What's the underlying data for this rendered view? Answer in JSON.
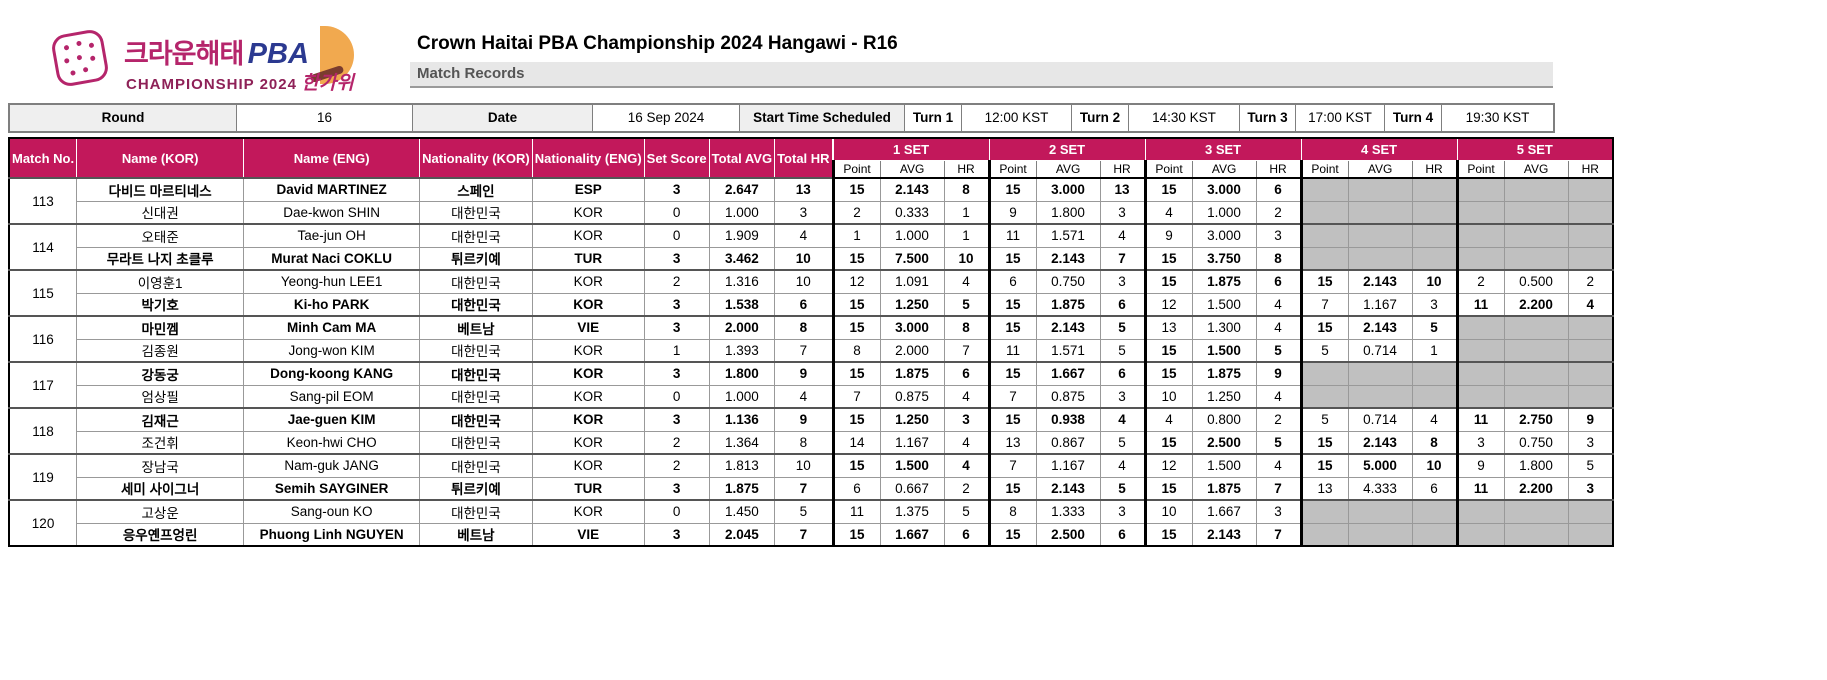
{
  "colors": {
    "header_bg": "#C2185B",
    "empty_cell": "#C0C0C0",
    "brand_magenta": "#B5256B",
    "brand_blue": "#2B3990",
    "moon_orange": "#F1A94F"
  },
  "logo": {
    "brand_kr": "크라운해태",
    "brand_en": "PBA",
    "line2_left": "CHAMPIONSHIP 2024",
    "line2_right": "한가위"
  },
  "header": {
    "title": "Crown Haitai PBA Championship 2024 Hangawi - R16",
    "section": "Match Records"
  },
  "info_bar": {
    "round_label": "Round",
    "round_value": "16",
    "date_label": "Date",
    "date_value": "16 Sep 2024",
    "start_label": "Start Time Scheduled",
    "turns": [
      {
        "label": "Turn 1",
        "time": "12:00 KST"
      },
      {
        "label": "Turn 2",
        "time": "14:30 KST"
      },
      {
        "label": "Turn 3",
        "time": "17:00 KST"
      },
      {
        "label": "Turn 4",
        "time": "19:30 KST"
      }
    ]
  },
  "table": {
    "headers": {
      "match_no": "Match\nNo.",
      "name_kor": "Name\n(KOR)",
      "name_eng": "Name\n(ENG)",
      "nat_kor": "Nationality\n(KOR)",
      "nat_eng": "Nationality\n(ENG)",
      "set_score": "Set\nScore",
      "total_avg": "Total\nAVG",
      "total_hr": "Total\nHR"
    },
    "set_headers": [
      "1 SET",
      "2 SET",
      "3 SET",
      "4 SET",
      "5 SET"
    ],
    "sub_headers": [
      "Point",
      "AVG",
      "HR"
    ],
    "matches": [
      {
        "no": "113",
        "players": [
          {
            "name_kor": "다비드 마르티네스",
            "name_eng": "David MARTINEZ",
            "nat_kor": "스페인",
            "nat_eng": "ESP",
            "set_score": "3",
            "total_avg": "2.647",
            "total_hr": "13",
            "winner": true,
            "sets": [
              {
                "point": "15",
                "avg": "2.143",
                "hr": "8",
                "win": true
              },
              {
                "point": "15",
                "avg": "3.000",
                "hr": "13",
                "win": true
              },
              {
                "point": "15",
                "avg": "3.000",
                "hr": "6",
                "win": true
              },
              null,
              null
            ]
          },
          {
            "name_kor": "신대권",
            "name_eng": "Dae-kwon SHIN",
            "nat_kor": "대한민국",
            "nat_eng": "KOR",
            "set_score": "0",
            "total_avg": "1.000",
            "total_hr": "3",
            "winner": false,
            "sets": [
              {
                "point": "2",
                "avg": "0.333",
                "hr": "1",
                "win": false
              },
              {
                "point": "9",
                "avg": "1.800",
                "hr": "3",
                "win": false
              },
              {
                "point": "4",
                "avg": "1.000",
                "hr": "2",
                "win": false
              },
              null,
              null
            ]
          }
        ]
      },
      {
        "no": "114",
        "players": [
          {
            "name_kor": "오태준",
            "name_eng": "Tae-jun OH",
            "nat_kor": "대한민국",
            "nat_eng": "KOR",
            "set_score": "0",
            "total_avg": "1.909",
            "total_hr": "4",
            "winner": false,
            "sets": [
              {
                "point": "1",
                "avg": "1.000",
                "hr": "1",
                "win": false
              },
              {
                "point": "11",
                "avg": "1.571",
                "hr": "4",
                "win": false
              },
              {
                "point": "9",
                "avg": "3.000",
                "hr": "3",
                "win": false
              },
              null,
              null
            ]
          },
          {
            "name_kor": "무라트 나지 초클루",
            "name_eng": "Murat Naci COKLU",
            "nat_kor": "튀르키예",
            "nat_eng": "TUR",
            "set_score": "3",
            "total_avg": "3.462",
            "total_hr": "10",
            "winner": true,
            "sets": [
              {
                "point": "15",
                "avg": "7.500",
                "hr": "10",
                "win": true
              },
              {
                "point": "15",
                "avg": "2.143",
                "hr": "7",
                "win": true
              },
              {
                "point": "15",
                "avg": "3.750",
                "hr": "8",
                "win": true
              },
              null,
              null
            ]
          }
        ]
      },
      {
        "no": "115",
        "players": [
          {
            "name_kor": "이영훈1",
            "name_eng": "Yeong-hun LEE1",
            "nat_kor": "대한민국",
            "nat_eng": "KOR",
            "set_score": "2",
            "total_avg": "1.316",
            "total_hr": "10",
            "winner": false,
            "sets": [
              {
                "point": "12",
                "avg": "1.091",
                "hr": "4",
                "win": false
              },
              {
                "point": "6",
                "avg": "0.750",
                "hr": "3",
                "win": false
              },
              {
                "point": "15",
                "avg": "1.875",
                "hr": "6",
                "win": true
              },
              {
                "point": "15",
                "avg": "2.143",
                "hr": "10",
                "win": true
              },
              {
                "point": "2",
                "avg": "0.500",
                "hr": "2",
                "win": false
              }
            ]
          },
          {
            "name_kor": "박기호",
            "name_eng": "Ki-ho PARK",
            "nat_kor": "대한민국",
            "nat_eng": "KOR",
            "set_score": "3",
            "total_avg": "1.538",
            "total_hr": "6",
            "winner": true,
            "sets": [
              {
                "point": "15",
                "avg": "1.250",
                "hr": "5",
                "win": true
              },
              {
                "point": "15",
                "avg": "1.875",
                "hr": "6",
                "win": true
              },
              {
                "point": "12",
                "avg": "1.500",
                "hr": "4",
                "win": false
              },
              {
                "point": "7",
                "avg": "1.167",
                "hr": "3",
                "win": false
              },
              {
                "point": "11",
                "avg": "2.200",
                "hr": "4",
                "win": true
              }
            ]
          }
        ]
      },
      {
        "no": "116",
        "players": [
          {
            "name_kor": "마민껨",
            "name_eng": "Minh Cam MA",
            "nat_kor": "베트남",
            "nat_eng": "VIE",
            "set_score": "3",
            "total_avg": "2.000",
            "total_hr": "8",
            "winner": true,
            "sets": [
              {
                "point": "15",
                "avg": "3.000",
                "hr": "8",
                "win": true
              },
              {
                "point": "15",
                "avg": "2.143",
                "hr": "5",
                "win": true
              },
              {
                "point": "13",
                "avg": "1.300",
                "hr": "4",
                "win": false
              },
              {
                "point": "15",
                "avg": "2.143",
                "hr": "5",
                "win": true
              },
              null
            ]
          },
          {
            "name_kor": "김종원",
            "name_eng": "Jong-won KIM",
            "nat_kor": "대한민국",
            "nat_eng": "KOR",
            "set_score": "1",
            "total_avg": "1.393",
            "total_hr": "7",
            "winner": false,
            "sets": [
              {
                "point": "8",
                "avg": "2.000",
                "hr": "7",
                "win": false
              },
              {
                "point": "11",
                "avg": "1.571",
                "hr": "5",
                "win": false
              },
              {
                "point": "15",
                "avg": "1.500",
                "hr": "5",
                "win": true
              },
              {
                "point": "5",
                "avg": "0.714",
                "hr": "1",
                "win": false
              },
              null
            ]
          }
        ]
      },
      {
        "no": "117",
        "players": [
          {
            "name_kor": "강동궁",
            "name_eng": "Dong-koong KANG",
            "nat_kor": "대한민국",
            "nat_eng": "KOR",
            "set_score": "3",
            "total_avg": "1.800",
            "total_hr": "9",
            "winner": true,
            "sets": [
              {
                "point": "15",
                "avg": "1.875",
                "hr": "6",
                "win": true
              },
              {
                "point": "15",
                "avg": "1.667",
                "hr": "6",
                "win": true
              },
              {
                "point": "15",
                "avg": "1.875",
                "hr": "9",
                "win": true
              },
              null,
              null
            ]
          },
          {
            "name_kor": "엄상필",
            "name_eng": "Sang-pil EOM",
            "nat_kor": "대한민국",
            "nat_eng": "KOR",
            "set_score": "0",
            "total_avg": "1.000",
            "total_hr": "4",
            "winner": false,
            "sets": [
              {
                "point": "7",
                "avg": "0.875",
                "hr": "4",
                "win": false
              },
              {
                "point": "7",
                "avg": "0.875",
                "hr": "3",
                "win": false
              },
              {
                "point": "10",
                "avg": "1.250",
                "hr": "4",
                "win": false
              },
              null,
              null
            ]
          }
        ]
      },
      {
        "no": "118",
        "players": [
          {
            "name_kor": "김재근",
            "name_eng": "Jae-guen KIM",
            "nat_kor": "대한민국",
            "nat_eng": "KOR",
            "set_score": "3",
            "total_avg": "1.136",
            "total_hr": "9",
            "winner": true,
            "sets": [
              {
                "point": "15",
                "avg": "1.250",
                "hr": "3",
                "win": true
              },
              {
                "point": "15",
                "avg": "0.938",
                "hr": "4",
                "win": true
              },
              {
                "point": "4",
                "avg": "0.800",
                "hr": "2",
                "win": false
              },
              {
                "point": "5",
                "avg": "0.714",
                "hr": "4",
                "win": false
              },
              {
                "point": "11",
                "avg": "2.750",
                "hr": "9",
                "win": true
              }
            ]
          },
          {
            "name_kor": "조건휘",
            "name_eng": "Keon-hwi CHO",
            "nat_kor": "대한민국",
            "nat_eng": "KOR",
            "set_score": "2",
            "total_avg": "1.364",
            "total_hr": "8",
            "winner": false,
            "sets": [
              {
                "point": "14",
                "avg": "1.167",
                "hr": "4",
                "win": false
              },
              {
                "point": "13",
                "avg": "0.867",
                "hr": "5",
                "win": false
              },
              {
                "point": "15",
                "avg": "2.500",
                "hr": "5",
                "win": true
              },
              {
                "point": "15",
                "avg": "2.143",
                "hr": "8",
                "win": true
              },
              {
                "point": "3",
                "avg": "0.750",
                "hr": "3",
                "win": false
              }
            ]
          }
        ]
      },
      {
        "no": "119",
        "players": [
          {
            "name_kor": "장남국",
            "name_eng": "Nam-guk JANG",
            "nat_kor": "대한민국",
            "nat_eng": "KOR",
            "set_score": "2",
            "total_avg": "1.813",
            "total_hr": "10",
            "winner": false,
            "sets": [
              {
                "point": "15",
                "avg": "1.500",
                "hr": "4",
                "win": true
              },
              {
                "point": "7",
                "avg": "1.167",
                "hr": "4",
                "win": false
              },
              {
                "point": "12",
                "avg": "1.500",
                "hr": "4",
                "win": false
              },
              {
                "point": "15",
                "avg": "5.000",
                "hr": "10",
                "win": true
              },
              {
                "point": "9",
                "avg": "1.800",
                "hr": "5",
                "win": false
              }
            ]
          },
          {
            "name_kor": "세미 사이그너",
            "name_eng": "Semih SAYGINER",
            "nat_kor": "튀르키예",
            "nat_eng": "TUR",
            "set_score": "3",
            "total_avg": "1.875",
            "total_hr": "7",
            "winner": true,
            "sets": [
              {
                "point": "6",
                "avg": "0.667",
                "hr": "2",
                "win": false
              },
              {
                "point": "15",
                "avg": "2.143",
                "hr": "5",
                "win": true
              },
              {
                "point": "15",
                "avg": "1.875",
                "hr": "7",
                "win": true
              },
              {
                "point": "13",
                "avg": "4.333",
                "hr": "6",
                "win": false
              },
              {
                "point": "11",
                "avg": "2.200",
                "hr": "3",
                "win": true
              }
            ]
          }
        ]
      },
      {
        "no": "120",
        "players": [
          {
            "name_kor": "고상운",
            "name_eng": "Sang-oun KO",
            "nat_kor": "대한민국",
            "nat_eng": "KOR",
            "set_score": "0",
            "total_avg": "1.450",
            "total_hr": "5",
            "winner": false,
            "sets": [
              {
                "point": "11",
                "avg": "1.375",
                "hr": "5",
                "win": false
              },
              {
                "point": "8",
                "avg": "1.333",
                "hr": "3",
                "win": false
              },
              {
                "point": "10",
                "avg": "1.667",
                "hr": "3",
                "win": false
              },
              null,
              null
            ]
          },
          {
            "name_kor": "응우옌프엉린",
            "name_eng": "Phuong Linh NGUYEN",
            "nat_kor": "베트남",
            "nat_eng": "VIE",
            "set_score": "3",
            "total_avg": "2.045",
            "total_hr": "7",
            "winner": true,
            "sets": [
              {
                "point": "15",
                "avg": "1.667",
                "hr": "6",
                "win": true
              },
              {
                "point": "15",
                "avg": "2.500",
                "hr": "6",
                "win": true
              },
              {
                "point": "15",
                "avg": "2.143",
                "hr": "7",
                "win": true
              },
              null,
              null
            ]
          }
        ]
      }
    ]
  }
}
